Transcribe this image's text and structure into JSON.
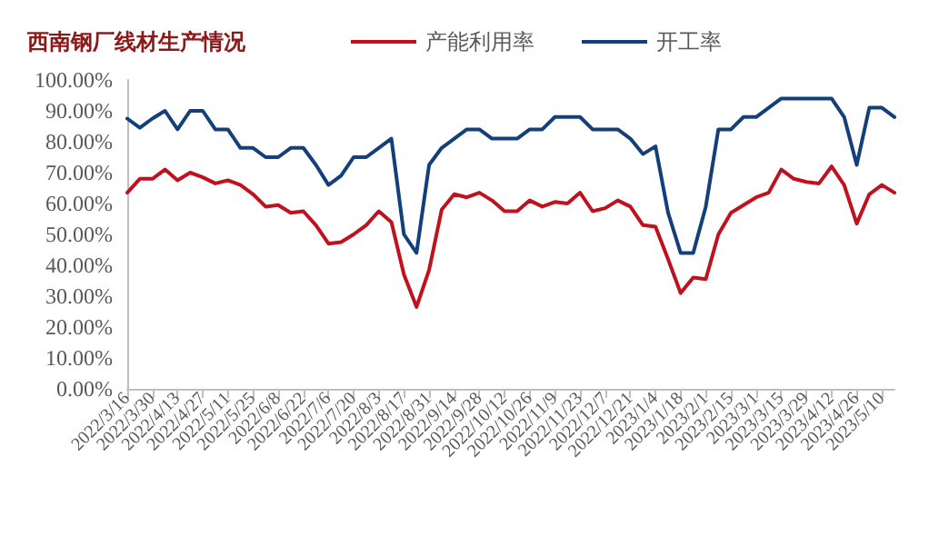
{
  "chart_data": {
    "type": "line",
    "title": "西南钢厂线材生产情况",
    "categories": [
      "2022/3/16",
      null,
      "2022/3/30",
      null,
      "2022/4/13",
      null,
      "2022/4/27",
      null,
      "2022/5/11",
      null,
      "2022/5/25",
      null,
      "2022/6/8",
      null,
      "2022/6/22",
      null,
      "2022/7/6",
      null,
      "2022/7/20",
      null,
      "2022/8/3",
      null,
      "2022/8/17",
      null,
      "2022/8/31",
      null,
      "2022/9/14",
      null,
      "2022/9/28",
      null,
      "2022/10/12",
      null,
      "2022/10/26",
      null,
      "2022/11/9",
      null,
      "2022/11/23",
      null,
      "2022/12/7",
      null,
      "2022/12/21",
      null,
      "2023/1/4",
      null,
      "2023/1/18",
      null,
      "2023/2/1",
      null,
      "2023/2/15",
      null,
      "2023/3/1",
      null,
      "2023/3/15",
      null,
      "2023/3/29",
      null,
      "2023/4/12",
      null,
      "2023/4/26",
      null,
      "2023/5/10",
      null
    ],
    "series": [
      {
        "name": "产能利用率",
        "color": "#c0111f",
        "values": [
          63.5,
          68,
          68,
          71,
          67.5,
          70,
          68.5,
          66.5,
          67.5,
          66,
          63,
          59,
          59.5,
          57,
          57.5,
          53,
          47,
          47.5,
          50,
          53,
          57.5,
          54,
          37,
          26.5,
          38.5,
          58,
          63,
          62,
          63.5,
          61,
          57.5,
          57.5,
          61,
          59,
          60.5,
          60,
          63.5,
          57.5,
          58.5,
          61,
          59,
          53,
          52.5,
          42,
          31,
          36,
          35.5,
          50,
          57,
          59.5,
          62,
          63.5,
          71,
          68,
          67,
          66.5,
          72,
          66,
          53.5,
          63,
          66,
          63.5
        ]
      },
      {
        "name": "开工率",
        "color": "#13407a",
        "values": [
          87.5,
          84.5,
          87.5,
          90,
          84,
          90,
          90,
          84,
          84,
          78,
          78,
          75,
          75,
          78,
          78,
          72.5,
          66,
          69,
          75,
          75,
          78,
          81,
          50,
          44,
          72.5,
          78,
          81,
          84,
          84,
          81,
          81,
          81,
          84,
          84,
          88,
          88,
          88,
          84,
          84,
          84,
          81,
          76,
          78.5,
          57,
          44,
          44,
          59,
          84,
          84,
          88,
          88,
          91,
          94,
          94,
          94,
          94,
          94,
          88,
          72.5,
          91,
          91,
          88
        ]
      }
    ],
    "ylim": [
      0,
      100
    ],
    "yticks": [
      {
        "value": 0,
        "label": "0.00%"
      },
      {
        "value": 10,
        "label": "10.00%"
      },
      {
        "value": 20,
        "label": "20.00%"
      },
      {
        "value": 30,
        "label": "30.00%"
      },
      {
        "value": 40,
        "label": "40.00%"
      },
      {
        "value": 50,
        "label": "50.00%"
      },
      {
        "value": 60,
        "label": "60.00%"
      },
      {
        "value": 70,
        "label": "70.00%"
      },
      {
        "value": 80,
        "label": "80.00%"
      },
      {
        "value": 90,
        "label": "90.00%"
      },
      {
        "value": 100,
        "label": "100.00%"
      }
    ],
    "grid": false,
    "legend": "top",
    "marker": "none",
    "line_style": "solid"
  }
}
